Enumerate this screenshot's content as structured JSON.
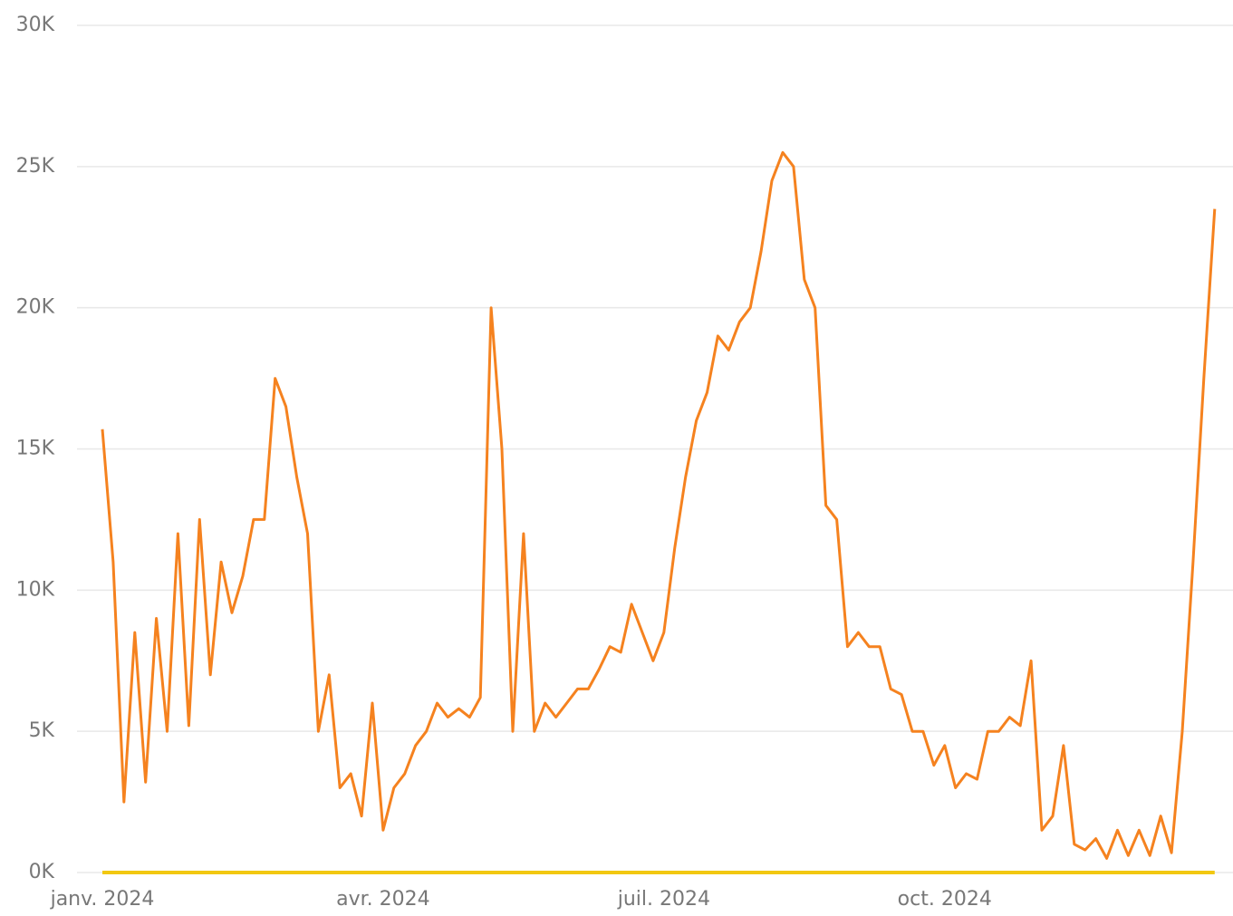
{
  "chart_data": {
    "type": "line",
    "categories": [
      "janv. 2024",
      null,
      null,
      null,
      null,
      null,
      null,
      null,
      null,
      null,
      null,
      null,
      null,
      null,
      null,
      null,
      null,
      null,
      null,
      null,
      null,
      null,
      null,
      null,
      null,
      null,
      "avr. 2024",
      null,
      null,
      null,
      null,
      null,
      null,
      null,
      null,
      null,
      null,
      null,
      null,
      null,
      null,
      null,
      null,
      null,
      null,
      null,
      null,
      null,
      null,
      null,
      null,
      null,
      "juil. 2024",
      null,
      null,
      null,
      null,
      null,
      null,
      null,
      null,
      null,
      null,
      null,
      null,
      null,
      null,
      null,
      null,
      null,
      null,
      null,
      null,
      null,
      null,
      null,
      null,
      null,
      "oct. 2024",
      null,
      null,
      null,
      null,
      null,
      null,
      null,
      null,
      null,
      null,
      null,
      null,
      null,
      null,
      null,
      null,
      null,
      null,
      null,
      null,
      null,
      null,
      null,
      null,
      null
    ],
    "series": [
      {
        "color": "#f5821f",
        "values": [
          15700,
          11000,
          2500,
          8500,
          3200,
          9000,
          5000,
          12000,
          5200,
          12500,
          7000,
          11000,
          9200,
          10500,
          12500,
          12500,
          17500,
          16500,
          14000,
          12000,
          5000,
          7000,
          3000,
          3500,
          2000,
          6000,
          1500,
          3000,
          3500,
          4500,
          5000,
          6000,
          5500,
          5800,
          5500,
          6200,
          20000,
          15000,
          5000,
          12000,
          5000,
          6000,
          5500,
          6000,
          6500,
          6500,
          7200,
          8000,
          7800,
          9500,
          8500,
          7500,
          8500,
          11500,
          14000,
          16000,
          17000,
          19000,
          18500,
          19500,
          20000,
          22000,
          24500,
          25500,
          25000,
          21000,
          20000,
          13000,
          12500,
          8000,
          8500,
          8000,
          8000,
          6500,
          6300,
          5000,
          5000,
          3800,
          4500,
          3000,
          3500,
          3300,
          5000,
          5000,
          5500,
          5200,
          7500,
          1500,
          2000,
          4500,
          1000,
          800,
          1200,
          500,
          1500,
          600,
          1500,
          600,
          2000,
          700,
          5000,
          11000,
          17500,
          23500
        ]
      },
      {
        "color": "#f2c811",
        "values": [
          0,
          0,
          0,
          0,
          0,
          0,
          0,
          0,
          0,
          0,
          0,
          0,
          0,
          0,
          0,
          0,
          0,
          0,
          0,
          0,
          0,
          0,
          0,
          0,
          0,
          0,
          0,
          0,
          0,
          0,
          0,
          0,
          0,
          0,
          0,
          0,
          0,
          0,
          0,
          0,
          0,
          0,
          0,
          0,
          0,
          0,
          0,
          0,
          0,
          0,
          0,
          0,
          0,
          0,
          0,
          0,
          0,
          0,
          0,
          0,
          0,
          0,
          0,
          0,
          0,
          0,
          0,
          0,
          0,
          0,
          0,
          0,
          0,
          0,
          0,
          0,
          0,
          0,
          0,
          0,
          0,
          0,
          0,
          0,
          0,
          0,
          0,
          0,
          0,
          0,
          0,
          0,
          0,
          0,
          0,
          0,
          0,
          0,
          0,
          0,
          0,
          0,
          0,
          0
        ]
      }
    ],
    "ylim": [
      0,
      30000
    ],
    "yticks": [
      {
        "value": 0,
        "label": "0K"
      },
      {
        "value": 5000,
        "label": "5K"
      },
      {
        "value": 10000,
        "label": "10K"
      },
      {
        "value": 15000,
        "label": "15K"
      },
      {
        "value": 20000,
        "label": "20K"
      },
      {
        "value": 25000,
        "label": "25K"
      },
      {
        "value": 30000,
        "label": "30K"
      }
    ],
    "grid": true
  }
}
